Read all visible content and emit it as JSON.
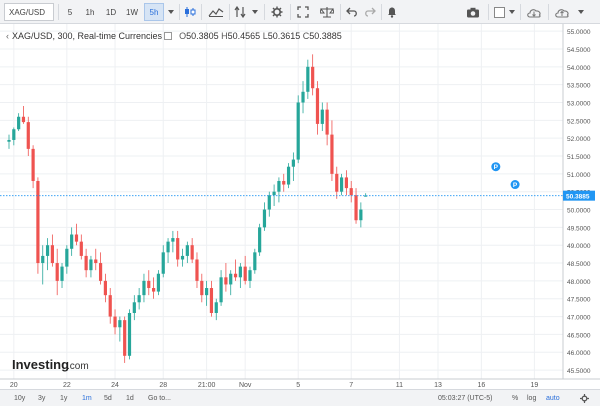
{
  "toolbar": {
    "symbol": "XAG/USD",
    "intervals": [
      "5",
      "1h",
      "1D",
      "1W",
      "5h"
    ],
    "active_interval": "5h"
  },
  "legend": {
    "title": "XAG/USD, 300, Real-time Currencies",
    "open_label": "O",
    "open": "50.3805",
    "high_label": "H",
    "high": "50.4565",
    "low_label": "L",
    "low": "50.3615",
    "close_label": "C",
    "close": "50.3885"
  },
  "logo": {
    "main": "Investing",
    "suffix": ".com"
  },
  "bottom": {
    "ranges": [
      "10y",
      "3y",
      "1y",
      "1m",
      "5d",
      "1d",
      "Go to..."
    ],
    "active_range": "1m",
    "time": "05:03:27 (UTC-5)",
    "percent": "%",
    "log": "log",
    "auto": "auto"
  },
  "colors": {
    "up": "#26a69a",
    "down": "#ef5350",
    "last_price": "#2196f3",
    "marker": "#2196f3"
  },
  "chart_data": {
    "type": "candlestick",
    "y_ticks": [
      "45.5000",
      "46.0000",
      "46.5000",
      "47.0000",
      "47.5000",
      "48.0000",
      "48.5000",
      "49.0000",
      "49.5000",
      "50.0000",
      "50.5000",
      "51.0000",
      "51.5000",
      "52.0000",
      "52.5000",
      "53.0000",
      "53.5000",
      "54.0000",
      "54.5000",
      "55.0000"
    ],
    "ylim": [
      45.25,
      55.2
    ],
    "x_ticks": [
      {
        "label": "20",
        "i": 1
      },
      {
        "label": "22",
        "i": 12
      },
      {
        "label": "24",
        "i": 22
      },
      {
        "label": "28",
        "i": 32
      },
      {
        "label": "21:00",
        "i": 41
      },
      {
        "label": "Nov",
        "i": 49
      },
      {
        "label": "5",
        "i": 60
      },
      {
        "label": "7",
        "i": 71
      },
      {
        "label": "11",
        "i": 81
      },
      {
        "label": "13",
        "i": 89
      },
      {
        "label": "16",
        "i": 98
      },
      {
        "label": "19",
        "i": 109
      }
    ],
    "last_price": "50.3885",
    "event_markers": [
      {
        "label": "P",
        "i": 101,
        "price": 51.2
      },
      {
        "label": "P",
        "i": 105,
        "price": 50.7
      }
    ],
    "candles": [
      [
        51.9,
        52.1,
        51.7,
        51.95
      ],
      [
        51.95,
        52.3,
        51.8,
        52.25
      ],
      [
        52.25,
        52.7,
        52.2,
        52.6
      ],
      [
        52.6,
        52.9,
        52.4,
        52.45
      ],
      [
        52.45,
        52.6,
        51.5,
        51.7
      ],
      [
        51.7,
        51.8,
        50.6,
        50.8
      ],
      [
        50.8,
        50.9,
        48.2,
        48.5
      ],
      [
        48.5,
        49.0,
        47.9,
        48.7
      ],
      [
        48.7,
        49.2,
        48.3,
        49.0
      ],
      [
        49.0,
        49.3,
        48.4,
        48.5
      ],
      [
        48.5,
        48.9,
        47.6,
        48.0
      ],
      [
        48.0,
        48.5,
        47.8,
        48.4
      ],
      [
        48.4,
        49.0,
        48.2,
        48.9
      ],
      [
        48.9,
        49.5,
        48.7,
        49.3
      ],
      [
        49.3,
        49.6,
        49.0,
        49.1
      ],
      [
        49.1,
        49.3,
        48.6,
        48.7
      ],
      [
        48.7,
        48.9,
        48.1,
        48.3
      ],
      [
        48.3,
        48.7,
        48.1,
        48.6
      ],
      [
        48.6,
        48.9,
        48.3,
        48.5
      ],
      [
        48.5,
        48.8,
        47.9,
        48.0
      ],
      [
        48.0,
        48.2,
        47.4,
        47.6
      ],
      [
        47.6,
        47.8,
        46.8,
        47.0
      ],
      [
        47.0,
        47.2,
        46.5,
        46.7
      ],
      [
        46.7,
        47.0,
        46.3,
        46.9
      ],
      [
        46.9,
        47.0,
        45.7,
        45.9
      ],
      [
        45.9,
        47.2,
        45.8,
        47.1
      ],
      [
        47.1,
        47.6,
        46.9,
        47.4
      ],
      [
        47.4,
        47.8,
        47.2,
        47.6
      ],
      [
        47.6,
        48.2,
        47.4,
        48.0
      ],
      [
        48.0,
        48.3,
        47.6,
        47.8
      ],
      [
        47.8,
        48.1,
        47.5,
        47.7
      ],
      [
        47.7,
        48.3,
        47.6,
        48.2
      ],
      [
        48.2,
        49.0,
        48.1,
        48.8
      ],
      [
        48.8,
        49.2,
        48.5,
        49.1
      ],
      [
        49.1,
        49.4,
        48.8,
        49.2
      ],
      [
        49.2,
        49.4,
        48.4,
        48.6
      ],
      [
        48.6,
        48.9,
        48.4,
        48.7
      ],
      [
        48.7,
        49.1,
        48.5,
        49.0
      ],
      [
        49.0,
        49.2,
        48.5,
        48.6
      ],
      [
        48.6,
        48.8,
        47.8,
        48.0
      ],
      [
        48.0,
        48.2,
        47.4,
        47.6
      ],
      [
        47.6,
        48.0,
        47.3,
        47.8
      ],
      [
        47.8,
        48.0,
        47.0,
        47.1
      ],
      [
        47.1,
        47.5,
        46.9,
        47.4
      ],
      [
        47.4,
        48.3,
        47.3,
        48.1
      ],
      [
        48.1,
        48.5,
        47.7,
        47.9
      ],
      [
        47.9,
        48.3,
        47.6,
        48.2
      ],
      [
        48.2,
        48.6,
        48.0,
        48.1
      ],
      [
        48.1,
        48.5,
        47.8,
        48.4
      ],
      [
        48.4,
        48.7,
        47.9,
        48.0
      ],
      [
        48.0,
        48.4,
        47.8,
        48.3
      ],
      [
        48.3,
        48.9,
        48.2,
        48.8
      ],
      [
        48.8,
        49.6,
        48.7,
        49.5
      ],
      [
        49.5,
        50.2,
        49.4,
        50.0
      ],
      [
        50.0,
        50.5,
        49.8,
        50.4
      ],
      [
        50.4,
        50.7,
        50.1,
        50.5
      ],
      [
        50.5,
        50.9,
        50.2,
        50.8
      ],
      [
        50.8,
        51.0,
        50.5,
        50.7
      ],
      [
        50.7,
        51.3,
        50.6,
        51.2
      ],
      [
        51.2,
        51.6,
        50.8,
        51.4
      ],
      [
        51.4,
        53.2,
        51.3,
        53.0
      ],
      [
        53.0,
        53.6,
        52.7,
        53.3
      ],
      [
        53.3,
        54.2,
        53.1,
        54.0
      ],
      [
        54.0,
        54.35,
        53.2,
        53.4
      ],
      [
        53.4,
        53.6,
        52.1,
        52.4
      ],
      [
        52.4,
        53.0,
        52.2,
        52.8
      ],
      [
        52.8,
        53.0,
        51.8,
        52.1
      ],
      [
        52.1,
        52.5,
        50.8,
        51.0
      ],
      [
        51.0,
        51.2,
        50.3,
        50.5
      ],
      [
        50.5,
        51.0,
        50.4,
        50.9
      ],
      [
        50.9,
        51.1,
        50.4,
        50.6
      ],
      [
        50.6,
        50.8,
        50.2,
        50.4
      ],
      [
        50.4,
        50.6,
        49.6,
        49.7
      ],
      [
        49.7,
        50.2,
        49.5,
        50.0
      ],
      [
        50.3805,
        50.4565,
        50.3615,
        50.3885
      ]
    ]
  }
}
